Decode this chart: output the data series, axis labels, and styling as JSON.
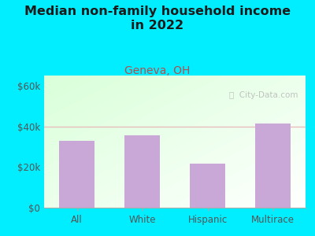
{
  "title": "Median non-family household income\nin 2022",
  "subtitle": "Geneva, OH",
  "categories": [
    "All",
    "White",
    "Hispanic",
    "Multirace"
  ],
  "values": [
    33000,
    35500,
    21500,
    41500
  ],
  "bar_color": "#c9a8d8",
  "title_fontsize": 11.5,
  "subtitle_fontsize": 10,
  "subtitle_color": "#b05050",
  "title_color": "#1a1a1a",
  "tick_color": "#555555",
  "ylim": [
    0,
    65000
  ],
  "yticks": [
    0,
    20000,
    40000,
    60000
  ],
  "ytick_labels": [
    "$0",
    "$20k",
    "$40k",
    "$60k"
  ],
  "bg_outer": "#00eeff",
  "watermark": "ⓘ  City-Data.com",
  "gridline_color": "#e8b8b8",
  "plot_bg_left": "#d8f0d8",
  "plot_bg_right": "#f8fff8"
}
